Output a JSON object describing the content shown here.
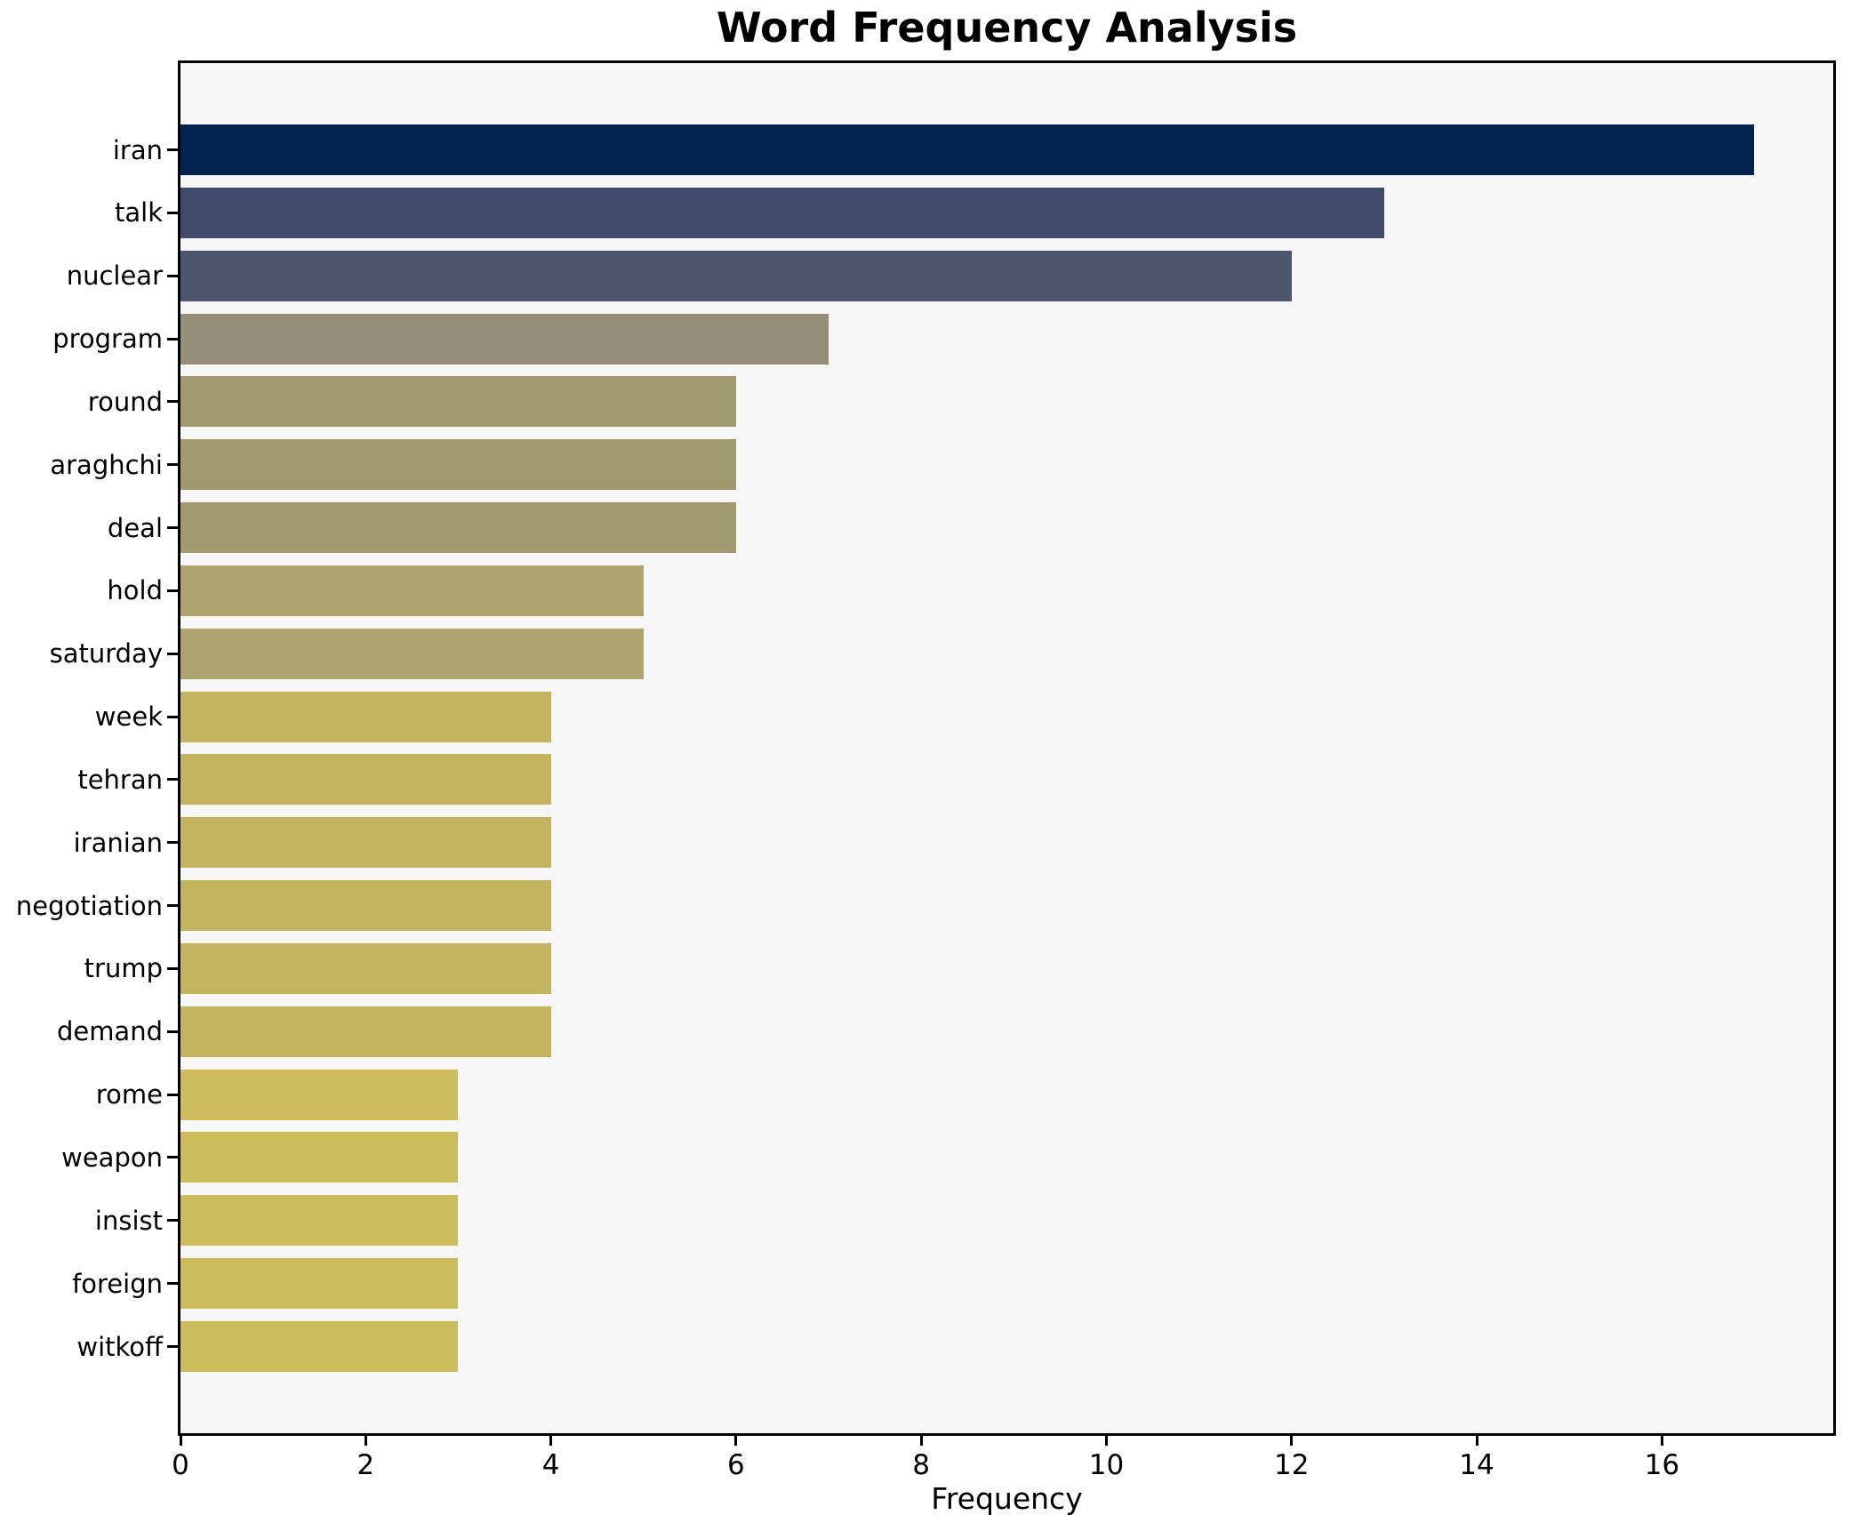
{
  "chart_data": {
    "type": "bar",
    "orientation": "horizontal",
    "title": "Word Frequency Analysis",
    "xlabel": "Frequency",
    "ylabel": "",
    "categories": [
      "iran",
      "talk",
      "nuclear",
      "program",
      "round",
      "araghchi",
      "deal",
      "hold",
      "saturday",
      "week",
      "tehran",
      "iranian",
      "negotiation",
      "trump",
      "demand",
      "rome",
      "weapon",
      "insist",
      "foreign",
      "witkoff"
    ],
    "values": [
      17,
      13,
      12,
      7,
      6,
      6,
      6,
      5,
      5,
      4,
      4,
      4,
      4,
      4,
      4,
      3,
      3,
      3,
      3,
      3
    ],
    "bar_colors": [
      "#02234e",
      "#404b6c",
      "#4d566c",
      "#948d78",
      "#a19970",
      "#a19970",
      "#a19970",
      "#aea46f",
      "#aea46f",
      "#c2b35f",
      "#c2b35f",
      "#c2b35f",
      "#c2b35f",
      "#c2b35f",
      "#c2b35f",
      "#cdbb5c",
      "#cdbb5c",
      "#cdbb5c",
      "#cdbb5c",
      "#cdbb5c"
    ],
    "xlim": [
      0,
      17.85
    ],
    "xticks": [
      0,
      2,
      4,
      6,
      8,
      10,
      12,
      14,
      16
    ],
    "grid": false,
    "legend": null,
    "plot_background": "#f7f7f7",
    "figure_background": "#ffffff",
    "axis_color": "#000000"
  }
}
